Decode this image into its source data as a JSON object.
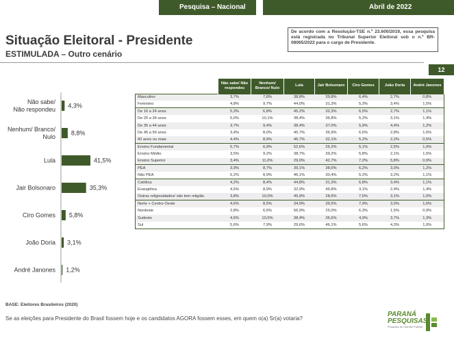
{
  "header": {
    "section": "Pesquisa – Nacional",
    "date": "Abril de 2022"
  },
  "title": "Situação Eleitoral - Presidente",
  "subtitle": "ESTIMULADA – Outro cenário",
  "notice": "De acordo com a Resolução-TSE n.º 23.600/2019, essa pesquisa está registrada no Tribunal Superior Eleitoral sob o n.º BR-08065/2022 para o cargo de Presidente.",
  "page_number": "12",
  "chart_data": {
    "type": "bar",
    "orientation": "horizontal",
    "categories": [
      "Não sabe/ Não respondeu",
      "Nenhum/ Branco/ Nulo",
      "Lula",
      "Jair Bolsonaro",
      "Ciro Gomes",
      "João Doria",
      "André Janones"
    ],
    "category_lines": [
      [
        "Não sabe/",
        "Não respondeu"
      ],
      [
        "Nenhum/ Branco/",
        "Nulo"
      ],
      [
        "Lula"
      ],
      [
        "Jair Bolsonaro"
      ],
      [
        "Ciro Gomes"
      ],
      [
        "João Doria"
      ],
      [
        "André Janones"
      ]
    ],
    "values": [
      4.3,
      8.8,
      41.5,
      35.3,
      5.8,
      3.1,
      1.2
    ],
    "value_labels": [
      "4,3%",
      "8,8%",
      "41,5%",
      "35,3%",
      "5,8%",
      "3,1%",
      "1,2%"
    ],
    "bar_color": "#3f5a2a",
    "xlim": [
      0,
      45
    ]
  },
  "table": {
    "columns": [
      "Não sabe/ Não respondeu",
      "Nenhum/ Branco/ Nulo",
      "Lula",
      "Jair Bolsonaro",
      "Ciro Gomes",
      "João Doria",
      "André Janones"
    ],
    "groups": [
      [
        [
          "Masculino",
          "3,7%",
          "7,8%",
          "38,8%",
          "39,8%",
          "6,4%",
          "2,7%",
          "0,8%"
        ],
        [
          "Feminino",
          "4,8%",
          "9,7%",
          "44,0%",
          "31,3%",
          "5,3%",
          "3,4%",
          "1,5%"
        ]
      ],
      [
        [
          "De 16 a 24 anos",
          "5,3%",
          "6,8%",
          "45,2%",
          "32,3%",
          "6,5%",
          "2,7%",
          "1,1%"
        ],
        [
          "De 25 a 34 anos",
          "5,0%",
          "10,1%",
          "38,4%",
          "36,8%",
          "5,2%",
          "3,1%",
          "1,4%"
        ],
        [
          "De 35 a 44 anos",
          "3,7%",
          "9,4%",
          "38,4%",
          "37,0%",
          "5,9%",
          "4,4%",
          "1,2%"
        ],
        [
          "De 45 a 59 anos",
          "3,4%",
          "8,0%",
          "40,7%",
          "36,9%",
          "6,6%",
          "2,8%",
          "1,6%"
        ],
        [
          "60 anos ou mais",
          "4,4%",
          "8,9%",
          "46,7%",
          "32,1%",
          "5,2%",
          "2,2%",
          "0,5%"
        ]
      ],
      [
        [
          "Ensino Fundamental",
          "5,7%",
          "6,9%",
          "52,6%",
          "26,2%",
          "5,1%",
          "2,5%",
          "1,0%"
        ],
        [
          "Ensino Médio",
          "3,5%",
          "9,2%",
          "38,7%",
          "39,2%",
          "5,8%",
          "2,1%",
          "1,5%"
        ],
        [
          "Ensino Superior",
          "3,4%",
          "11,0%",
          "29,0%",
          "42,7%",
          "7,2%",
          "5,8%",
          "0,9%"
        ]
      ],
      [
        [
          "PEA",
          "3,9%",
          "8,7%",
          "39,1%",
          "38,0%",
          "6,2%",
          "3,0%",
          "1,2%"
        ],
        [
          "Não PEA",
          "5,2%",
          "8,9%",
          "46,1%",
          "30,4%",
          "5,2%",
          "3,2%",
          "1,1%"
        ]
      ],
      [
        [
          "Católica",
          "4,2%",
          "8,4%",
          "44,8%",
          "31,3%",
          "6,8%",
          "3,4%",
          "1,1%"
        ],
        [
          "Evangélica",
          "4,5%",
          "8,9%",
          "32,9%",
          "46,8%",
          "3,1%",
          "2,4%",
          "1,4%"
        ],
        [
          "Outras religiosidades/ não tem religião",
          "3,8%",
          "10,0%",
          "45,9%",
          "28,6%",
          "7,6%",
          "3,1%",
          "1,0%"
        ]
      ],
      [
        [
          "Norte + Centro-Oeste",
          "4,6%",
          "8,5%",
          "34,9%",
          "39,5%",
          "7,9%",
          "3,0%",
          "1,6%"
        ],
        [
          "Nordeste",
          "2,8%",
          "6,6%",
          "56,9%",
          "25,0%",
          "6,3%",
          "1,5%",
          "0,9%"
        ],
        [
          "Sudeste",
          "4,6%",
          "10,5%",
          "38,4%",
          "36,6%",
          "4,9%",
          "3,7%",
          "1,3%"
        ],
        [
          "Sul",
          "5,6%",
          "7,9%",
          "29,6%",
          "46,1%",
          "5,6%",
          "4,3%",
          "1,0%"
        ]
      ]
    ]
  },
  "base": "BASE: Eleitores Brasileiros (2020)",
  "question": "Se as eleições para Presidente do Brasil fossem hoje e os candidatos AGORA fossem esses, em quem o(a) Sr(a) votaria?",
  "logo": {
    "line1": "PARANÁ",
    "line2": "PESQUISAS",
    "tagline": "Pesquisa de Opinião Pública"
  }
}
